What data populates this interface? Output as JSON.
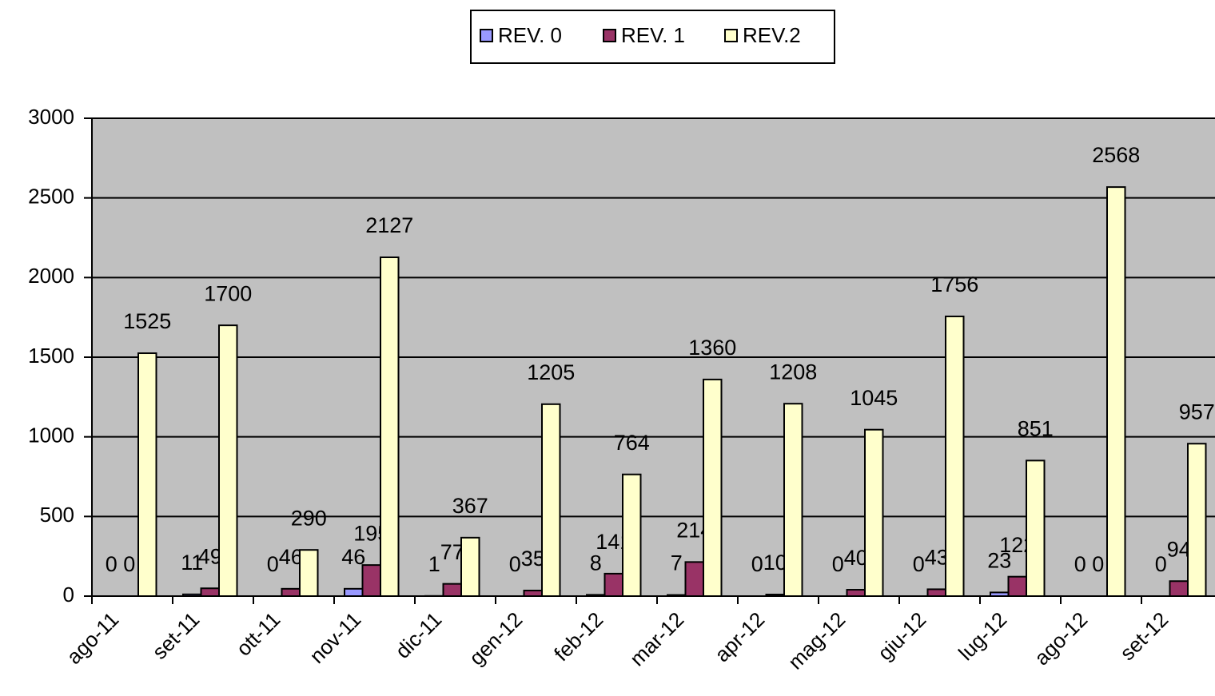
{
  "chart_data": {
    "type": "bar",
    "categories": [
      "ago-11",
      "set-11",
      "ott-11",
      "nov-11",
      "dic-11",
      "gen-12",
      "feb-12",
      "mar-12",
      "apr-12",
      "mag-12",
      "giu-12",
      "lug-12",
      "ago-12",
      "set-12"
    ],
    "series": [
      {
        "name": "REV. 0",
        "color": "#9999ff",
        "values": [
          0,
          11,
          0,
          46,
          1,
          0,
          8,
          7,
          0,
          0,
          0,
          23,
          0,
          0
        ]
      },
      {
        "name": "REV. 1",
        "color": "#993366",
        "values": [
          0,
          49,
          46,
          195,
          77,
          35,
          141,
          214,
          10,
          40,
          43,
          122,
          0,
          94
        ]
      },
      {
        "name": "REV.2",
        "color": "#ffffcc",
        "values": [
          1525,
          1700,
          290,
          2127,
          367,
          1205,
          764,
          1360,
          1208,
          1045,
          1756,
          851,
          2568,
          957
        ]
      }
    ],
    "ylim": [
      0,
      3000
    ],
    "yticks": [
      0,
      500,
      1000,
      1500,
      2000,
      2500,
      3000
    ],
    "grid": true,
    "legend": "top",
    "plot_background": "#c0c0c0"
  }
}
